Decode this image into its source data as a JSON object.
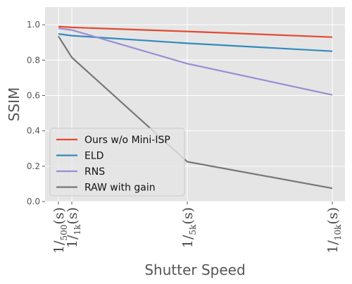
{
  "chart_data": {
    "type": "line",
    "xlabel": "Shutter Speed",
    "ylabel": "SSIM",
    "x_categories": [
      "1/500",
      "1/1k",
      "1/5k",
      "1/10k"
    ],
    "x_tick_labels": [
      {
        "base": "1/",
        "sub": "500",
        "unit": "(s)"
      },
      {
        "base": "1/",
        "sub": "1k",
        "unit": "(s)"
      },
      {
        "base": "1/",
        "sub": "5k",
        "unit": "(s)"
      },
      {
        "base": "1/",
        "sub": "10k",
        "unit": "(s)"
      }
    ],
    "x_values": [
      500,
      1000,
      5000,
      10000
    ],
    "ylim": [
      0.0,
      1.1
    ],
    "yticks": [
      "0.0",
      "0.2",
      "0.4",
      "0.6",
      "0.8",
      "1.0"
    ],
    "grid": true,
    "legend_position": "lower-left",
    "series": [
      {
        "name": "Ours w/o Mini-ISP",
        "color": "#E24A33",
        "values": [
          0.99,
          0.985,
          0.962,
          0.93
        ]
      },
      {
        "name": "ELD",
        "color": "#348ABD",
        "values": [
          0.948,
          0.938,
          0.895,
          0.85
        ]
      },
      {
        "name": "RNS",
        "color": "#988ED5",
        "values": [
          0.98,
          0.97,
          0.78,
          0.603
        ]
      },
      {
        "name": "RAW with gain",
        "color": "#777777",
        "values": [
          0.935,
          0.815,
          0.225,
          0.075
        ]
      }
    ]
  }
}
